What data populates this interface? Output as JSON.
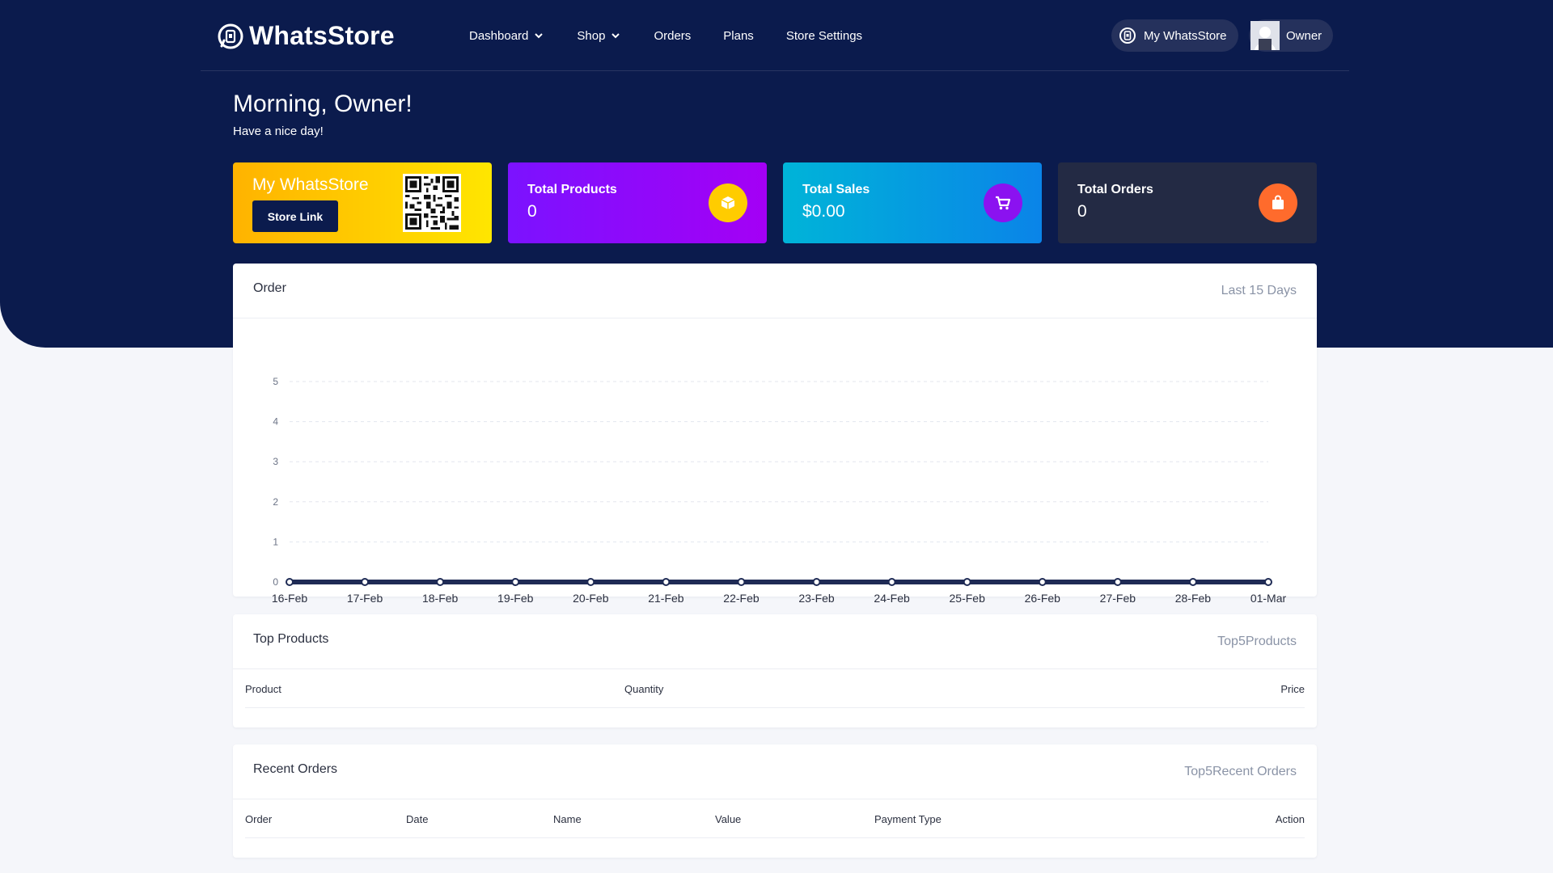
{
  "brand": {
    "name": "WhatsStore"
  },
  "nav": {
    "items": [
      {
        "label": "Dashboard",
        "has_caret": true
      },
      {
        "label": "Shop",
        "has_caret": true
      },
      {
        "label": "Orders",
        "has_caret": false
      },
      {
        "label": "Plans",
        "has_caret": false
      },
      {
        "label": "Store Settings",
        "has_caret": false
      }
    ]
  },
  "header_actions": {
    "my_store_label": "My WhatsStore",
    "user_label": "Owner"
  },
  "greeting": {
    "title": "Morning, Owner!",
    "subtitle": "Have a nice day!"
  },
  "cards": {
    "store": {
      "title": "My WhatsStore",
      "button": "Store Link"
    },
    "products": {
      "label": "Total Products",
      "value": "0",
      "icon": "box-icon",
      "icon_bg": "#ffcc00"
    },
    "sales": {
      "label": "Total Sales",
      "value": "$0.00",
      "icon": "cart-icon",
      "icon_bg": "#8b12f0"
    },
    "orders": {
      "label": "Total Orders",
      "value": "0",
      "icon": "bag-icon",
      "icon_bg": "#ff6b2c"
    }
  },
  "order_panel": {
    "title": "Order",
    "meta": "Last 15 Days"
  },
  "chart_data": {
    "type": "line",
    "categories": [
      "16-Feb",
      "17-Feb",
      "18-Feb",
      "19-Feb",
      "20-Feb",
      "21-Feb",
      "22-Feb",
      "23-Feb",
      "24-Feb",
      "25-Feb",
      "26-Feb",
      "27-Feb",
      "28-Feb",
      "01-Mar"
    ],
    "series": [
      {
        "values": [
          0,
          0,
          0,
          0,
          0,
          0,
          0,
          0,
          0,
          0,
          0,
          0,
          0,
          0
        ]
      }
    ],
    "yticks": [
      0,
      1,
      2,
      3,
      4,
      5
    ],
    "ylim": [
      0,
      5
    ],
    "grid": true,
    "line_color": "#1f2b55"
  },
  "top_products": {
    "title": "Top Products",
    "meta": "Top5Products",
    "columns": [
      "Product",
      "Quantity",
      "Price"
    ]
  },
  "recent_orders": {
    "title": "Recent Orders",
    "meta": "Top5Recent Orders",
    "columns": [
      "Order",
      "Date",
      "Name",
      "Value",
      "Payment Type",
      "Action"
    ]
  }
}
